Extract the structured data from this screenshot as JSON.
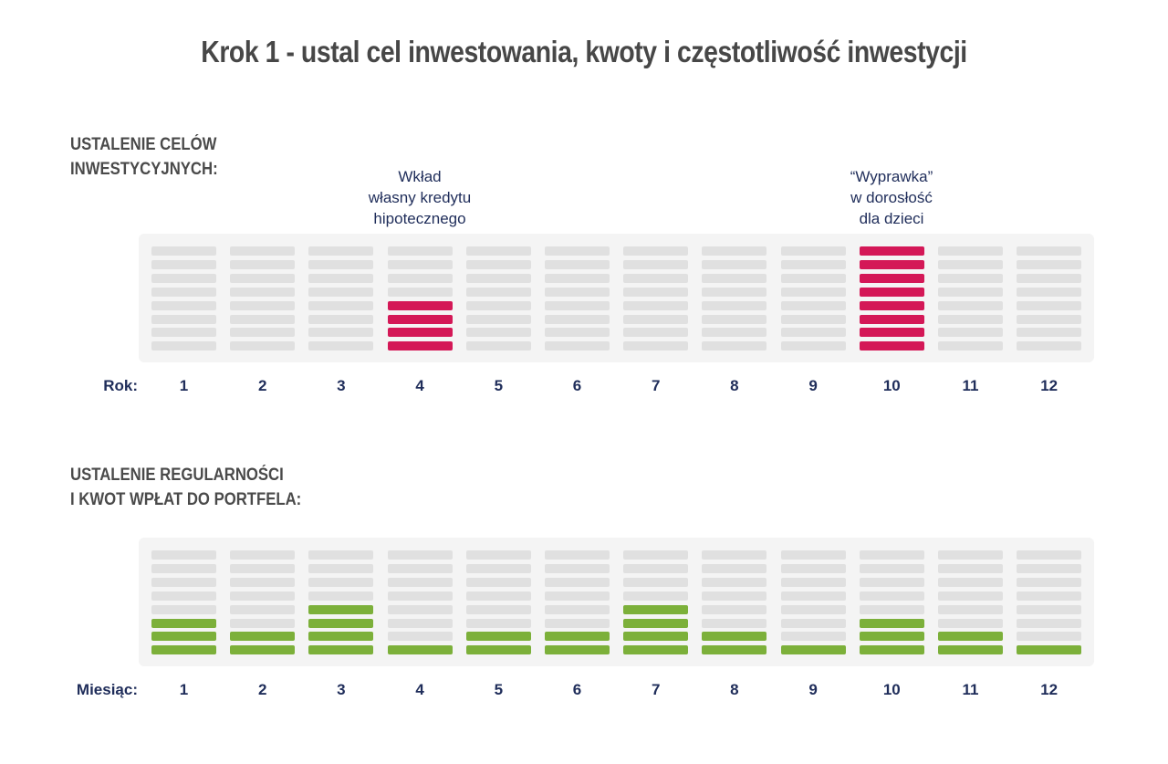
{
  "title": "Krok 1 - ustal cel inwestowania, kwoty i częstotliwość inwestycji",
  "chart_data": [
    {
      "type": "bar",
      "title_lines": [
        "USTALENIE CELÓW",
        "INWESTYCYJNYCH:"
      ],
      "xlabel": "Rok:",
      "categories": [
        "1",
        "2",
        "3",
        "4",
        "5",
        "6",
        "7",
        "8",
        "9",
        "10",
        "11",
        "12"
      ],
      "values": [
        0,
        0,
        0,
        4,
        0,
        0,
        0,
        0,
        0,
        8,
        0,
        0
      ],
      "max_segments": 8,
      "color": "#d41857",
      "empty_color": "#e0e0e0",
      "annotations": [
        {
          "category": "4",
          "lines": [
            "Wkład",
            "własny kredytu",
            "hipotecznego"
          ]
        },
        {
          "category": "10",
          "lines": [
            "“Wyprawka”",
            "w dorosłość",
            "dla dzieci"
          ]
        }
      ]
    },
    {
      "type": "bar",
      "title_lines": [
        "USTALENIE REGULARNOŚCI",
        "I KWOT WPŁAT DO PORTFELA:"
      ],
      "xlabel": "Miesiąc:",
      "categories": [
        "1",
        "2",
        "3",
        "4",
        "5",
        "6",
        "7",
        "8",
        "9",
        "10",
        "11",
        "12"
      ],
      "values": [
        3,
        2,
        4,
        1,
        2,
        2,
        4,
        2,
        1,
        3,
        2,
        1
      ],
      "max_segments": 8,
      "color": "#7cb03a",
      "empty_color": "#e0e0e0"
    }
  ]
}
